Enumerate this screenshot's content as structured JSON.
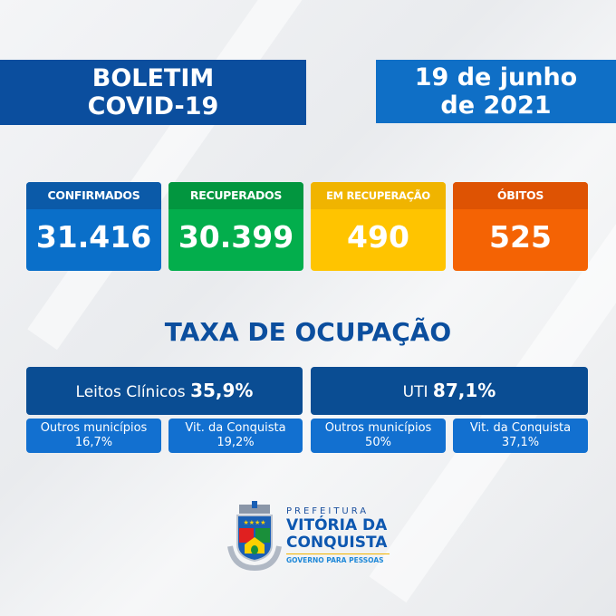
{
  "header": {
    "title_line1": "BOLETIM",
    "title_line2": "COVID-19",
    "date_line1": "19 de junho",
    "date_line2": "de 2021"
  },
  "cards": [
    {
      "label": "CONFIRMADOS",
      "value": "31.416",
      "color": "#0a6fc9",
      "header_color": "#0b5aa8"
    },
    {
      "label": "RECUPERADOS",
      "value": "30.399",
      "color": "#03ae4c",
      "header_color": "#02963f"
    },
    {
      "label": "EM RECUPERAÇÃO",
      "value": "490",
      "color": "#ffc400",
      "header_color": "#f0b400"
    },
    {
      "label": "ÓBITOS",
      "value": "525",
      "color": "#f46304",
      "header_color": "#de5303"
    }
  ],
  "occupancy": {
    "title": "TAXA DE OCUPAÇÃO",
    "clinicos": {
      "label": "Leitos Clínicos",
      "value": "35,9%",
      "outros_label": "Outros municípios",
      "outros_value": "16,7%",
      "vit_label": "Vit. da Conquista",
      "vit_value": "19,2%"
    },
    "uti": {
      "label": "UTI",
      "value": "87,1%",
      "outros_label": "Outros municípios",
      "outros_value": "50%",
      "vit_label": "Vit. da Conquista",
      "vit_value": "37,1%"
    }
  },
  "logo": {
    "line1": "PREFEITURA",
    "line2": "VITÓRIA DA",
    "line3": "CONQUISTA",
    "slogan": "GOVERNO PARA PESSOAS",
    "seal_text": "VITÓRIA DA CONQUISTA"
  }
}
